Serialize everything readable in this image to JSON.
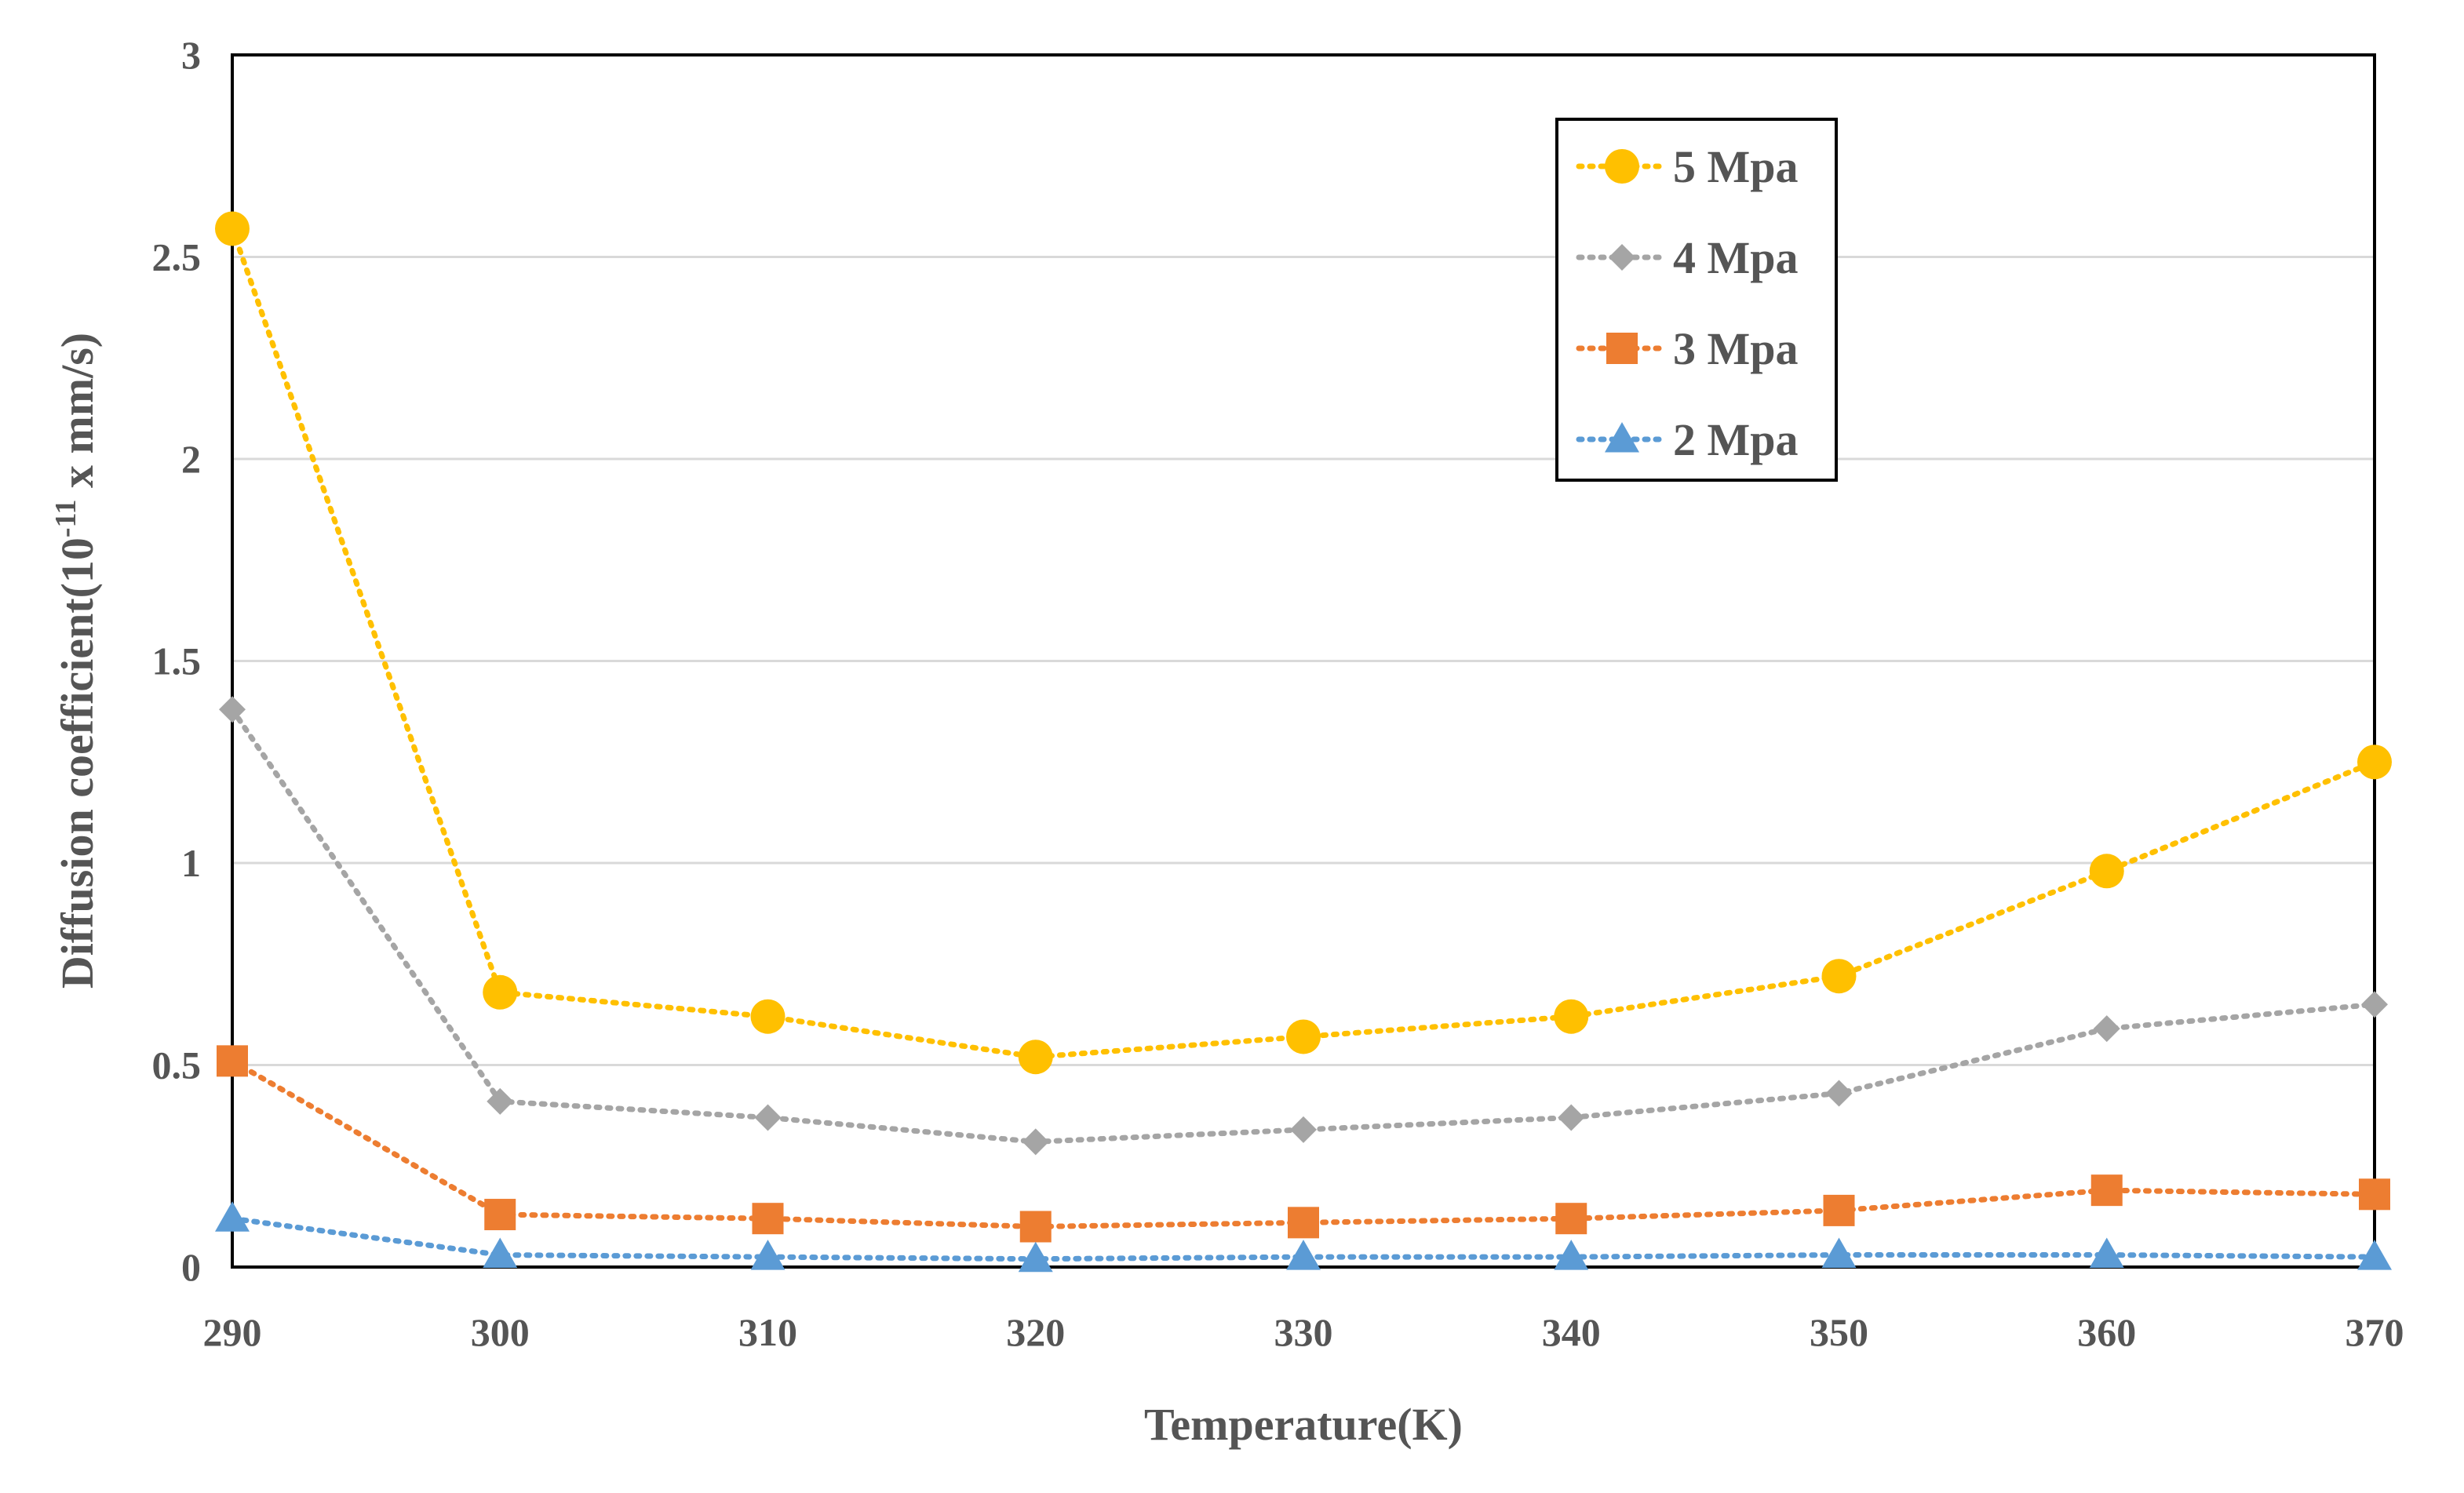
{
  "chart_data": {
    "type": "line",
    "title": "",
    "xlabel": "Temperature(K)",
    "ylabel": {
      "prefix": "Diffusion coefficient(10",
      "superscript": "-11",
      "suffix": " x mm/s)"
    },
    "x": [
      290,
      300,
      310,
      320,
      330,
      340,
      350,
      360,
      370
    ],
    "xlim": [
      290,
      370
    ],
    "ylim": [
      0,
      3
    ],
    "xticks": [
      "290",
      "300",
      "310",
      "320",
      "330",
      "340",
      "350",
      "360",
      "370"
    ],
    "yticks": [
      "0",
      "0.5",
      "1",
      "1.5",
      "2",
      "2.5",
      "3"
    ],
    "grid": "horizontal",
    "legend_position": "top-right",
    "series": [
      {
        "name": "5 Mpa",
        "marker": "circle",
        "color": "#FFC000",
        "values": [
          2.57,
          0.68,
          0.62,
          0.52,
          0.57,
          0.62,
          0.72,
          0.98,
          1.25
        ]
      },
      {
        "name": "4 Mpa",
        "marker": "diamond",
        "color": "#A5A5A5",
        "values": [
          1.38,
          0.41,
          0.37,
          0.31,
          0.34,
          0.37,
          0.43,
          0.59,
          0.65
        ]
      },
      {
        "name": "3 Mpa",
        "marker": "square",
        "color": "#ED7D31",
        "values": [
          0.51,
          0.13,
          0.12,
          0.1,
          0.11,
          0.12,
          0.14,
          0.19,
          0.18
        ]
      },
      {
        "name": "2 Mpa",
        "marker": "triangle",
        "color": "#5B9BD5",
        "values": [
          0.12,
          0.03,
          0.025,
          0.02,
          0.025,
          0.025,
          0.03,
          0.03,
          0.025
        ]
      }
    ]
  }
}
